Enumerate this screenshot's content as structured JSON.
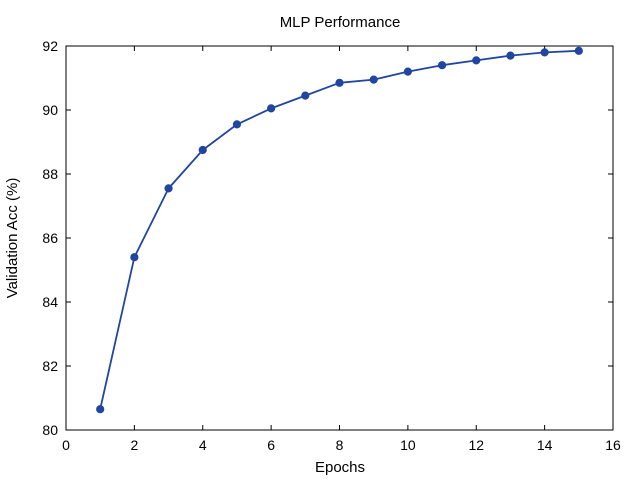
{
  "chart_data": {
    "type": "line",
    "title": "MLP Performance",
    "xlabel": "Epochs",
    "ylabel": "Validation Acc (%)",
    "xlim": [
      0,
      16
    ],
    "ylim": [
      80,
      92
    ],
    "xticks": [
      "0",
      "2",
      "4",
      "6",
      "8",
      "10",
      "12",
      "14",
      "16"
    ],
    "yticks": [
      "80",
      "82",
      "84",
      "86",
      "88",
      "90",
      "92"
    ],
    "grid": false,
    "series": [
      {
        "color": "#2146a0",
        "x": [
          1,
          2,
          3,
          4,
          5,
          6,
          7,
          8,
          9,
          10,
          11,
          12,
          13,
          14,
          15
        ],
        "y": [
          80.65,
          85.4,
          87.55,
          88.75,
          89.55,
          90.05,
          90.45,
          90.85,
          90.95,
          91.2,
          91.4,
          91.55,
          91.7,
          91.8,
          91.85
        ]
      }
    ]
  }
}
